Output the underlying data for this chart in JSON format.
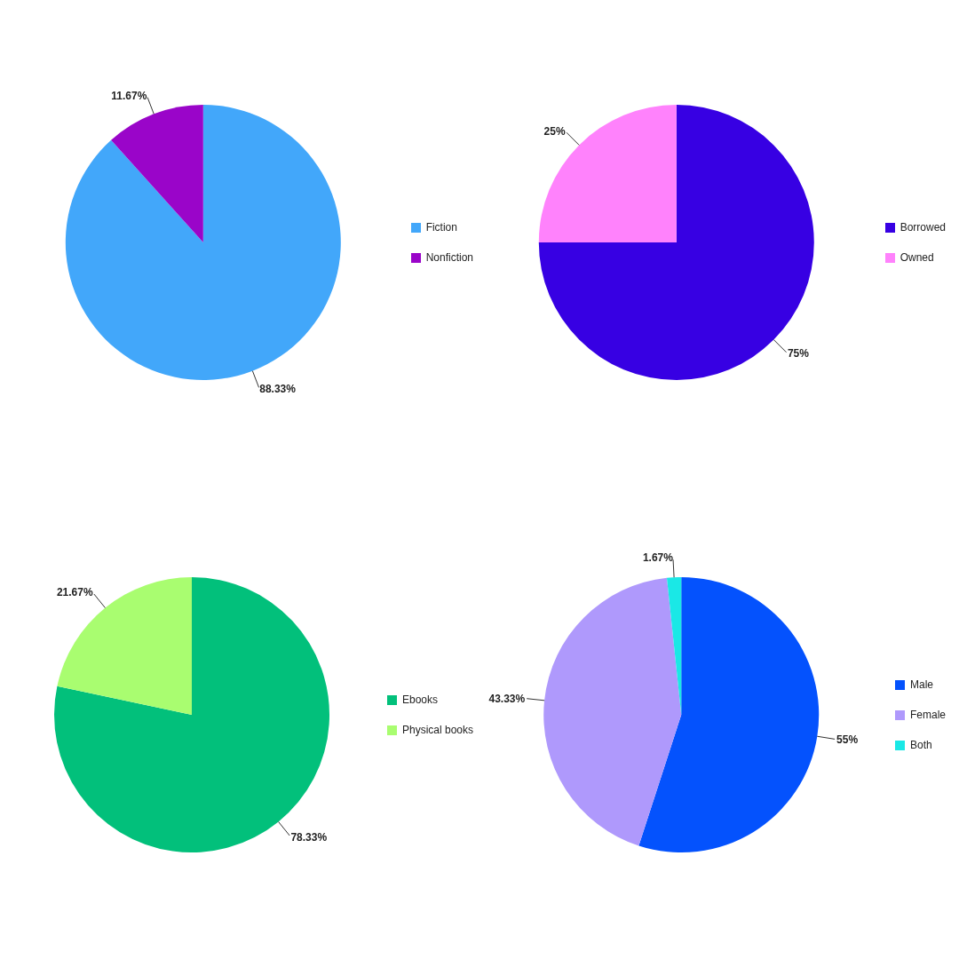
{
  "chart_data": [
    {
      "type": "pie",
      "categories": [
        "Fiction",
        "Nonfiction"
      ],
      "values": [
        88.33,
        11.67
      ],
      "value_labels": [
        "88.33%",
        "11.67%"
      ],
      "colors": [
        "#42a7fa",
        "#9a05c9"
      ],
      "legend": "right"
    },
    {
      "type": "pie",
      "categories": [
        "Borrowed",
        "Owned"
      ],
      "values": [
        75,
        25
      ],
      "value_labels": [
        "75%",
        "25%"
      ],
      "colors": [
        "#3700e3",
        "#ff82fc"
      ],
      "legend": "right"
    },
    {
      "type": "pie",
      "categories": [
        "Ebooks",
        "Physical books"
      ],
      "values": [
        78.33,
        21.67
      ],
      "value_labels": [
        "78.33%",
        "21.67%"
      ],
      "colors": [
        "#02c07b",
        "#a9fd70"
      ],
      "legend": "right"
    },
    {
      "type": "pie",
      "categories": [
        "Male",
        "Female",
        "Both"
      ],
      "values": [
        55,
        43.33,
        1.67
      ],
      "value_labels": [
        "55%",
        "43.33%",
        "1.67%"
      ],
      "colors": [
        "#0452fd",
        "#af99fc",
        "#1ae8e6"
      ],
      "legend": "right"
    }
  ]
}
